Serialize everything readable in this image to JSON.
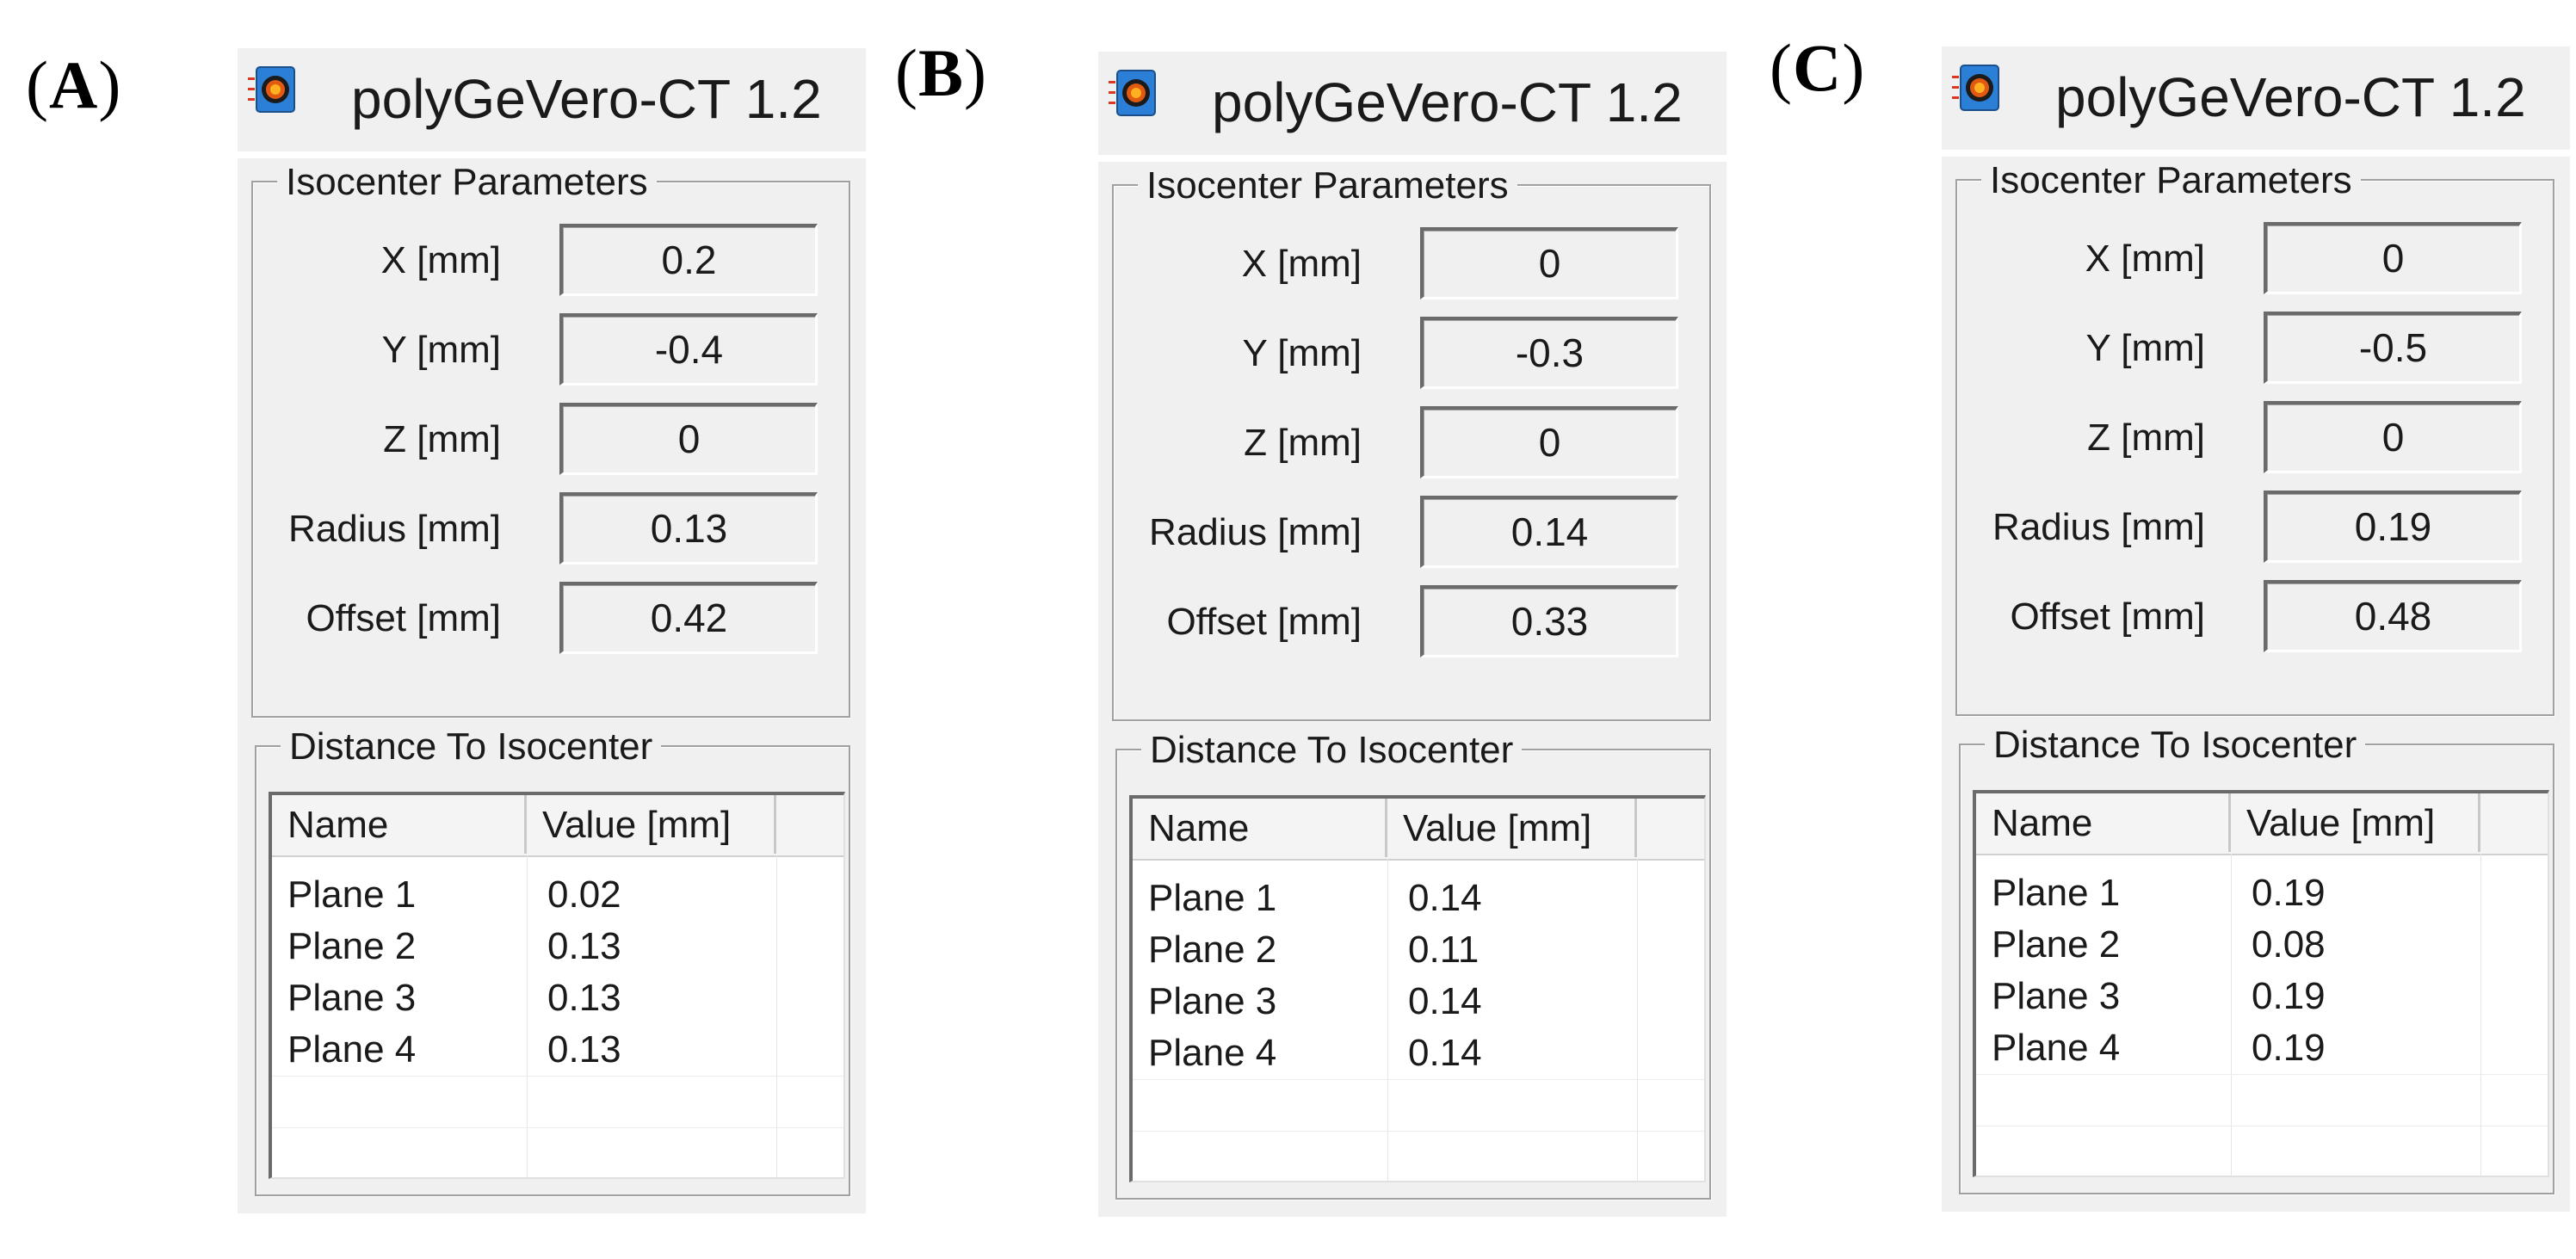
{
  "panels": [
    {
      "letter": "A",
      "app_title": "polyGeVero-CT 1.2",
      "iso_group_title": "Isocenter Parameters",
      "params": [
        {
          "label": "X [mm]",
          "value": "0.2"
        },
        {
          "label": "Y [mm]",
          "value": "-0.4"
        },
        {
          "label": "Z [mm]",
          "value": "0"
        },
        {
          "label": "Radius [mm]",
          "value": "0.13"
        },
        {
          "label": "Offset [mm]",
          "value": "0.42"
        }
      ],
      "dist_group_title": "Distance To Isocenter",
      "columns": [
        "Name",
        "Value [mm]"
      ],
      "rows": [
        {
          "name": "Plane 1",
          "value": "0.02"
        },
        {
          "name": "Plane 2",
          "value": "0.13"
        },
        {
          "name": "Plane 3",
          "value": "0.13"
        },
        {
          "name": "Plane 4",
          "value": "0.13"
        }
      ]
    },
    {
      "letter": "B",
      "app_title": "polyGeVero-CT 1.2",
      "iso_group_title": "Isocenter Parameters",
      "params": [
        {
          "label": "X [mm]",
          "value": "0"
        },
        {
          "label": "Y [mm]",
          "value": "-0.3"
        },
        {
          "label": "Z [mm]",
          "value": "0"
        },
        {
          "label": "Radius [mm]",
          "value": "0.14"
        },
        {
          "label": "Offset [mm]",
          "value": "0.33"
        }
      ],
      "dist_group_title": "Distance To Isocenter",
      "columns": [
        "Name",
        "Value [mm]"
      ],
      "rows": [
        {
          "name": "Plane 1",
          "value": "0.14"
        },
        {
          "name": "Plane 2",
          "value": "0.11"
        },
        {
          "name": "Plane 3",
          "value": "0.14"
        },
        {
          "name": "Plane 4",
          "value": "0.14"
        }
      ]
    },
    {
      "letter": "C",
      "app_title": "polyGeVero-CT 1.2",
      "iso_group_title": "Isocenter Parameters",
      "params": [
        {
          "label": "X [mm]",
          "value": "0"
        },
        {
          "label": "Y [mm]",
          "value": "-0.5"
        },
        {
          "label": "Z [mm]",
          "value": "0"
        },
        {
          "label": "Radius [mm]",
          "value": "0.19"
        },
        {
          "label": "Offset [mm]",
          "value": "0.48"
        }
      ],
      "dist_group_title": "Distance To Isocenter",
      "columns": [
        "Name",
        "Value [mm]"
      ],
      "rows": [
        {
          "name": "Plane 1",
          "value": "0.19"
        },
        {
          "name": "Plane 2",
          "value": "0.08"
        },
        {
          "name": "Plane 3",
          "value": "0.19"
        },
        {
          "name": "Plane 4",
          "value": "0.19"
        }
      ]
    }
  ],
  "icon": "app-logo-icon"
}
